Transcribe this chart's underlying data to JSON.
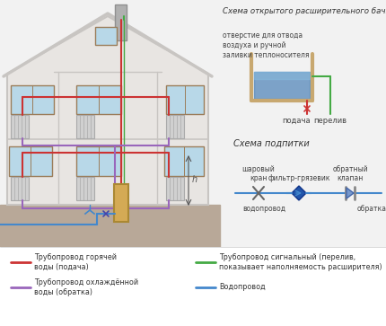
{
  "title": "Схема открытого расширительного бачка",
  "title2": "Схема подпитки",
  "bg_color": "#f2f2f2",
  "wall_fc": "#e8e5e2",
  "wall_ec": "#c8c5c2",
  "roof_ec": "#c8c5c2",
  "ground_color": "#b8a898",
  "win_c": "#b8d8e8",
  "win_f": "#9b7d5a",
  "rad_color": "#d0d0d0",
  "rad_ec": "#aaaaaa",
  "chimney_color": "#b0b0b0",
  "chimney_ec": "#909090",
  "boiler_color": "#d4aa55",
  "boiler_ec": "#aa8833",
  "pipe_hot": "#cc3333",
  "pipe_cold": "#9966bb",
  "pipe_signal": "#44aa44",
  "pipe_water": "#4488cc",
  "tank_body": "#c8a870",
  "tank_water": "#5588bb",
  "legend_items": [
    {
      "color": "#cc3333",
      "label": "Трубопровод горячей\nводы (подача)"
    },
    {
      "color": "#9966bb",
      "label": "Трубопровод охлаждённой\nводы (обратка)"
    },
    {
      "color": "#44aa44",
      "label": "Трубопровод сигнальный (перелив,\nпоказывает наполняемость расширителя)"
    },
    {
      "color": "#4488cc",
      "label": "Водопровод"
    }
  ],
  "tank_label_top": "отверстие для отвода\nвоздуха и ручной\nзаливки теплоносителя",
  "tank_label_feed": "подача",
  "tank_label_overflow": "перелив",
  "makeup_label_filter": "фильтр-грязевик",
  "makeup_label_ball": "шаровый\nкран",
  "makeup_label_check": "обратный\nклапан",
  "makeup_label_water": "водопровод",
  "makeup_label_return": "обратка",
  "h_label": "h"
}
